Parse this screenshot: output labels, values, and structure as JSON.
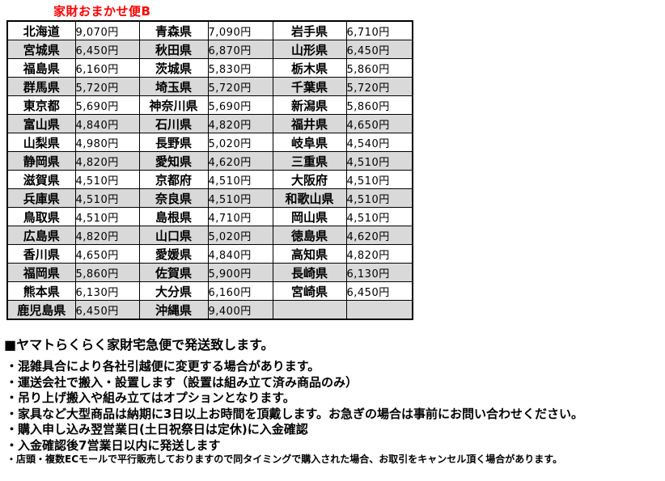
{
  "title": "家財おまかせ便B",
  "colors": {
    "title_red": "#ff0000",
    "row_alt_gray": "#d9d9d9",
    "border_black": "#000000"
  },
  "table": {
    "rows": [
      [
        "北海道",
        "9,070円",
        "青森県",
        "7,090円",
        "岩手県",
        "6,710円"
      ],
      [
        "宮城県",
        "6,450円",
        "秋田県",
        "6,870円",
        "山形県",
        "6,450円"
      ],
      [
        "福島県",
        "6,160円",
        "茨城県",
        "5,830円",
        "栃木県",
        "5,860円"
      ],
      [
        "群馬県",
        "5,720円",
        "埼玉県",
        "5,720円",
        "千葉県",
        "5,720円"
      ],
      [
        "東京都",
        "5,690円",
        "神奈川県",
        "5,690円",
        "新潟県",
        "5,860円"
      ],
      [
        "富山県",
        "4,840円",
        "石川県",
        "4,820円",
        "福井県",
        "4,650円"
      ],
      [
        "山梨県",
        "4,980円",
        "長野県",
        "5,020円",
        "岐阜県",
        "4,540円"
      ],
      [
        "静岡県",
        "4,820円",
        "愛知県",
        "4,620円",
        "三重県",
        "4,510円"
      ],
      [
        "滋賀県",
        "4,510円",
        "京都府",
        "4,510円",
        "大阪府",
        "4,510円"
      ],
      [
        "兵庫県",
        "4,510円",
        "奈良県",
        "4,510円",
        "和歌山県",
        "4,510円"
      ],
      [
        "鳥取県",
        "4,510円",
        "島根県",
        "4,710円",
        "岡山県",
        "4,510円"
      ],
      [
        "広島県",
        "4,820円",
        "山口県",
        "5,020円",
        "徳島県",
        "4,620円"
      ],
      [
        "香川県",
        "4,650円",
        "愛媛県",
        "4,840円",
        "高知県",
        "4,820円"
      ],
      [
        "福岡県",
        "5,860円",
        "佐賀県",
        "5,900円",
        "長崎県",
        "6,130円"
      ],
      [
        "熊本県",
        "6,130円",
        "大分県",
        "6,160円",
        "宮崎県",
        "6,450円"
      ],
      [
        "鹿児島県",
        "6,450円",
        "沖縄県",
        "9,400円",
        "",
        ""
      ]
    ]
  },
  "notes": {
    "heading": "■ヤマトらくらく家財宅急便で発送致します。",
    "bullets": [
      "・混雑具合により各社引越便に変更する場合があります。",
      "・運送会社で搬入・設置します（設置は組み立て済み商品のみ）",
      "・吊り上げ搬入や組み立てはオプションとなります。",
      "・家具など大型商品は納期に3日以上お時間を頂戴します。お急ぎの場合は事前にお問い合わせください。",
      "・購入申し込み翌営業日(土日祝祭日は定休)に入金確認",
      "・入金確認後7営業日以内に発送します"
    ],
    "footnote": "・店頭・複数ECモールで平行販売しておりますので同タイミングで購入された場合、お取引をキャンセル頂く場合があります。"
  }
}
